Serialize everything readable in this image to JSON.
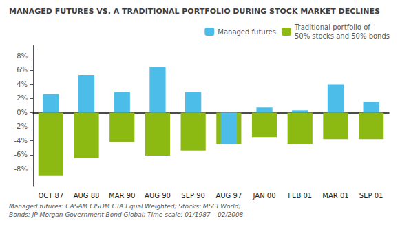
{
  "chart_data": {
    "type": "bar",
    "title": "MANAGED FUTURES VS. A TRADITIONAL PORTFOLIO DURING STOCK MARKET DECLINES",
    "footnote": "Managed futures: CASAM CISDM CTA Equal Weighted; Stocks: MSCI World;\nBonds: JP Morgan Government Bond Global; Time scale: 01/1987 – 02/2008",
    "categories": [
      "OCT 87",
      "AUG 88",
      "MAR 90",
      "AUG 90",
      "SEP 90",
      "AUG 97",
      "JAN 00",
      "FEB 01",
      "MAR 01",
      "SEP 01"
    ],
    "series": [
      {
        "name": "Managed futures",
        "color": "#4BBDE8",
        "values": [
          2.6,
          5.3,
          2.9,
          6.4,
          2.9,
          -4.5,
          0.7,
          0.3,
          4.0,
          1.5
        ]
      },
      {
        "name": "Traditional portfolio of\n50% stocks and 50% bonds",
        "color": "#8DB913",
        "values": [
          -9.0,
          -6.5,
          -4.2,
          -6.1,
          -5.4,
          -4.5,
          -3.5,
          -4.5,
          -3.8,
          -3.8
        ]
      }
    ],
    "ylim": [
      -10.5,
      9.5
    ],
    "yticks": [
      {
        "value": -8,
        "label": "-8%"
      },
      {
        "value": -6,
        "label": "-6%"
      },
      {
        "value": -4,
        "label": "-4%"
      },
      {
        "value": -2,
        "label": "-2%"
      },
      {
        "value": 0,
        "label": "0%"
      },
      {
        "value": 2,
        "label": "2%"
      },
      {
        "value": 4,
        "label": "4%"
      },
      {
        "value": 6,
        "label": "6%"
      },
      {
        "value": 8,
        "label": "8%"
      }
    ],
    "grid": false,
    "legend": "upper right"
  }
}
